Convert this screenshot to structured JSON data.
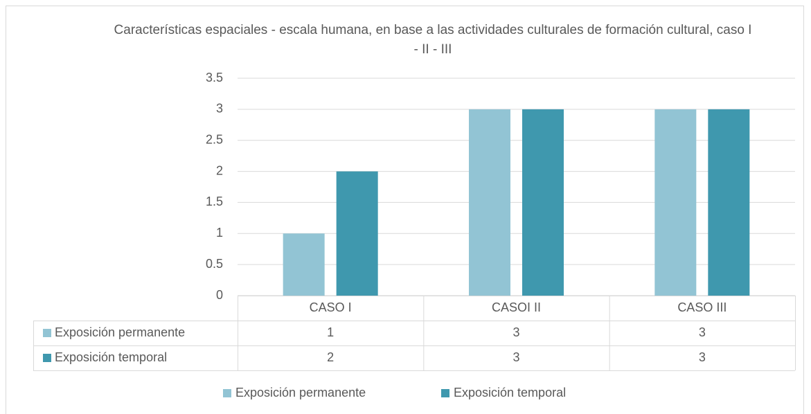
{
  "chart_data": {
    "type": "bar",
    "title": "Características espaciales  - escala humana, en base a las actividades culturales de formación cultural, caso I - II - III",
    "categories": [
      "CASO I",
      "CASOI II",
      "CASO III"
    ],
    "series": [
      {
        "name": "Exposición permanente",
        "color": "#92c4d4",
        "values": [
          1,
          3,
          3
        ]
      },
      {
        "name": "Exposición temporal",
        "color": "#3f98ae",
        "values": [
          2,
          3,
          3
        ]
      }
    ],
    "ylim": [
      0,
      3.5
    ],
    "yticks": [
      0,
      0.5,
      1,
      1.5,
      2,
      2.5,
      3,
      3.5
    ],
    "grid": true,
    "legend": "bottom"
  }
}
